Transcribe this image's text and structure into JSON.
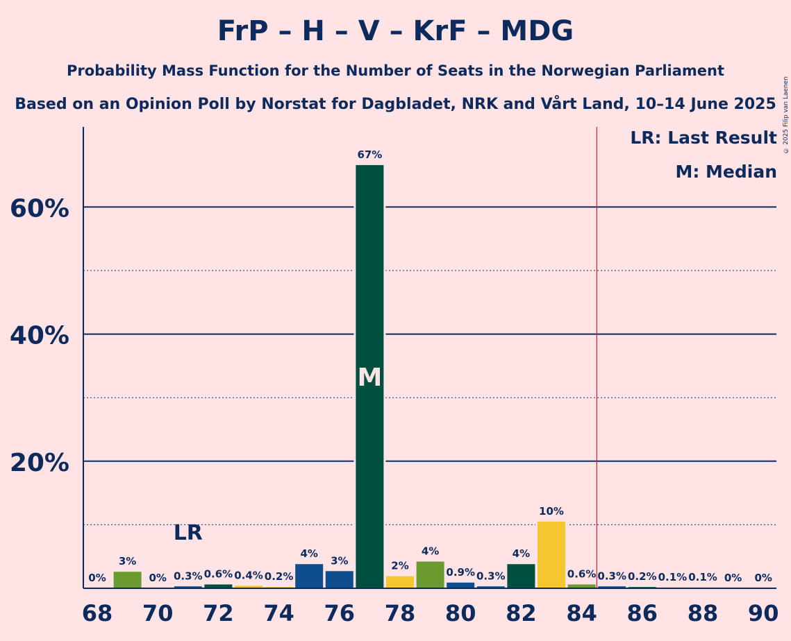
{
  "header": {
    "title": "FrP – H – V – KrF – MDG",
    "subtitle": "Probability Mass Function for the Number of Seats in the Norwegian Parliament",
    "subtitle2": "Based on an Opinion Poll by Norstat for Dagbladet, NRK and Vårt Land, 10–14 June 2025",
    "copyright": "© 2025 Filip van Laenen"
  },
  "legend": {
    "lr": "LR: Last Result",
    "median": "M: Median"
  },
  "chart_data": {
    "type": "bar",
    "x": [
      68,
      69,
      70,
      71,
      72,
      73,
      74,
      75,
      76,
      77,
      78,
      79,
      80,
      81,
      82,
      83,
      84,
      85,
      86,
      87,
      88,
      89,
      90
    ],
    "values": [
      0,
      2.6,
      0,
      0.3,
      0.6,
      0.4,
      0.2,
      3.8,
      2.7,
      66.6,
      1.9,
      4.2,
      0.9,
      0.3,
      3.8,
      10.5,
      0.6,
      0.3,
      0.2,
      0.1,
      0.1,
      0,
      0
    ],
    "data_labels": [
      "0%",
      "3%",
      "0%",
      "0.3%",
      "0.6%",
      "0.4%",
      "0.2%",
      "4%",
      "3%",
      "67%",
      "2%",
      "4%",
      "0.9%",
      "0.3%",
      "4%",
      "10%",
      "0.6%",
      "0.3%",
      "0.2%",
      "0.1%",
      "0.1%",
      "0%",
      "0%"
    ],
    "bar_colors": [
      "#6B9A2E",
      "#6B9A2E",
      "#6B9A2E",
      "#0F4E8C",
      "#00503F",
      "#F5C62F",
      "#F5C62F",
      "#0F4E8C",
      "#0F4E8C",
      "#00503F",
      "#F5C62F",
      "#6B9A2E",
      "#0F4E8C",
      "#0F4E8C",
      "#00503F",
      "#F5C62F",
      "#6B9A2E",
      "#0F4E8C",
      "#00503F",
      "#F5C62F",
      "#6B9A2E",
      "#0F4E8C",
      "#0F4E8C"
    ],
    "x_ticks": [
      68,
      70,
      72,
      74,
      76,
      78,
      80,
      82,
      84,
      86,
      88,
      90
    ],
    "y_ticks": [
      "20%",
      "40%",
      "60%"
    ],
    "y_tick_values": [
      20,
      40,
      60
    ],
    "y_minor_gridlines": [
      10,
      30,
      50
    ],
    "ylim": [
      0,
      72.6
    ],
    "median_seat": 77,
    "median_label": "M",
    "last_result_seat": 71,
    "last_result_label": "LR",
    "majority_line_at": 84.5,
    "colors": {
      "axis": "#0D2A5C",
      "majority_line": "#E0212B",
      "median_text": "#FFE3E5"
    }
  }
}
